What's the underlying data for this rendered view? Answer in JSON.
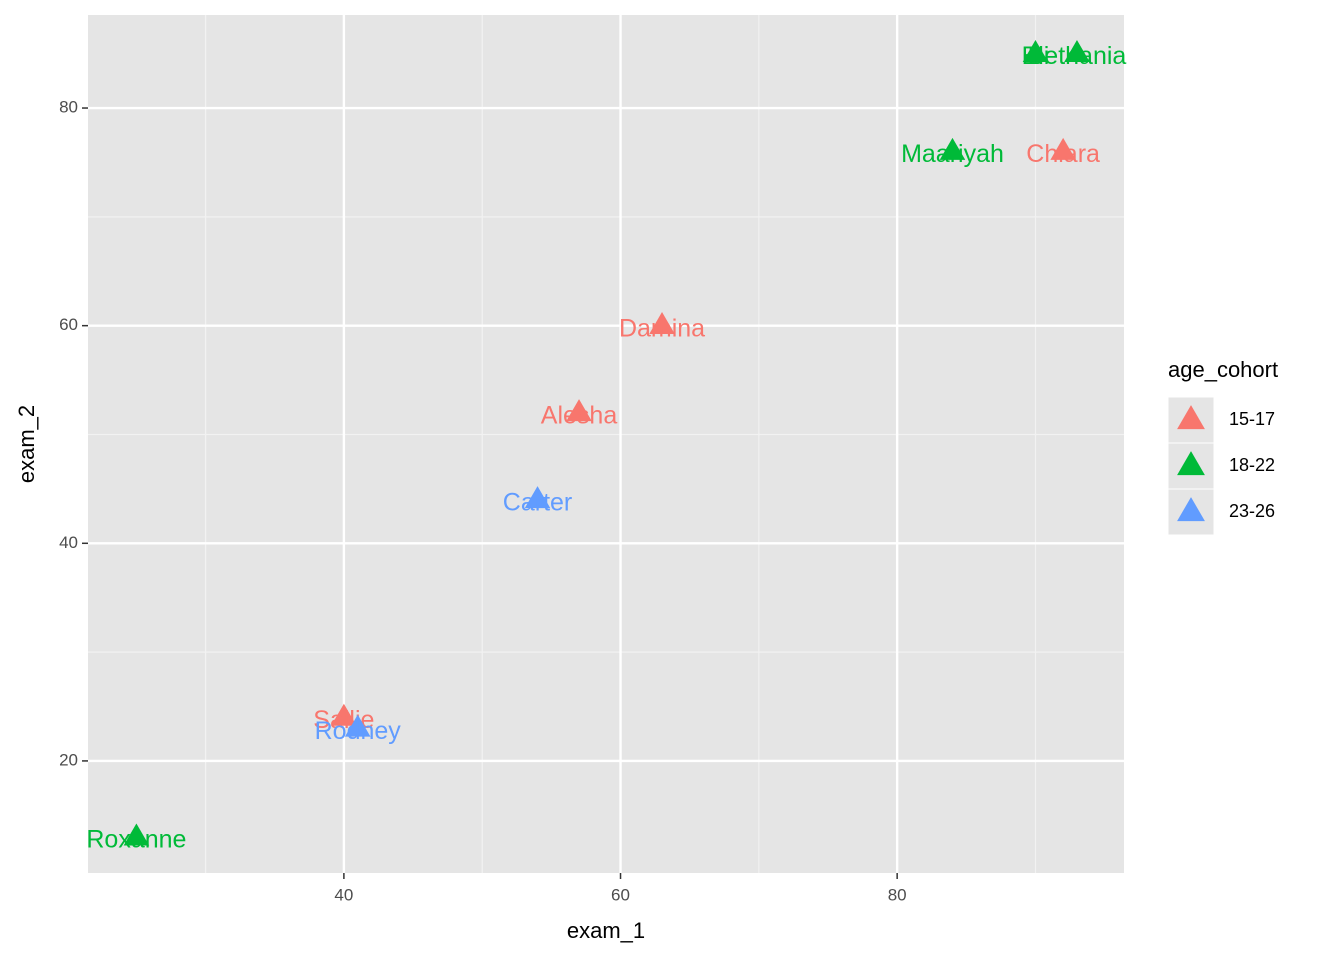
{
  "chart_data": {
    "type": "scatter",
    "x_label": "exam_1",
    "y_label": "exam_2",
    "legend_title": "age_cohort",
    "xlim": [
      21.5,
      96.4
    ],
    "ylim": [
      9.7,
      88.55
    ],
    "xticks": [
      40,
      60,
      80
    ],
    "yticks": [
      20,
      40,
      60,
      80
    ],
    "xminor": [
      30,
      50,
      70,
      90
    ],
    "yminor": [
      30,
      50,
      70
    ],
    "grid": true,
    "legend": "right",
    "series": [
      {
        "name": "15-17",
        "color": "#F8766D",
        "x": [
          40,
          57,
          63,
          92
        ],
        "values": [
          24,
          52,
          60,
          76
        ],
        "labels": [
          "Sallie",
          "Alesha",
          "Damina",
          "Chiara"
        ]
      },
      {
        "name": "18-22",
        "color": "#00BA38",
        "x": [
          25,
          84,
          90,
          93
        ],
        "values": [
          13,
          76,
          85,
          85
        ],
        "labels": [
          "Roxanne",
          "Maariyah",
          "Eli",
          "Bethania"
        ]
      },
      {
        "name": "23-26",
        "color": "#619CFF",
        "x": [
          41,
          54
        ],
        "values": [
          23,
          44
        ],
        "labels": [
          "Rodney",
          "Carter"
        ]
      }
    ]
  }
}
